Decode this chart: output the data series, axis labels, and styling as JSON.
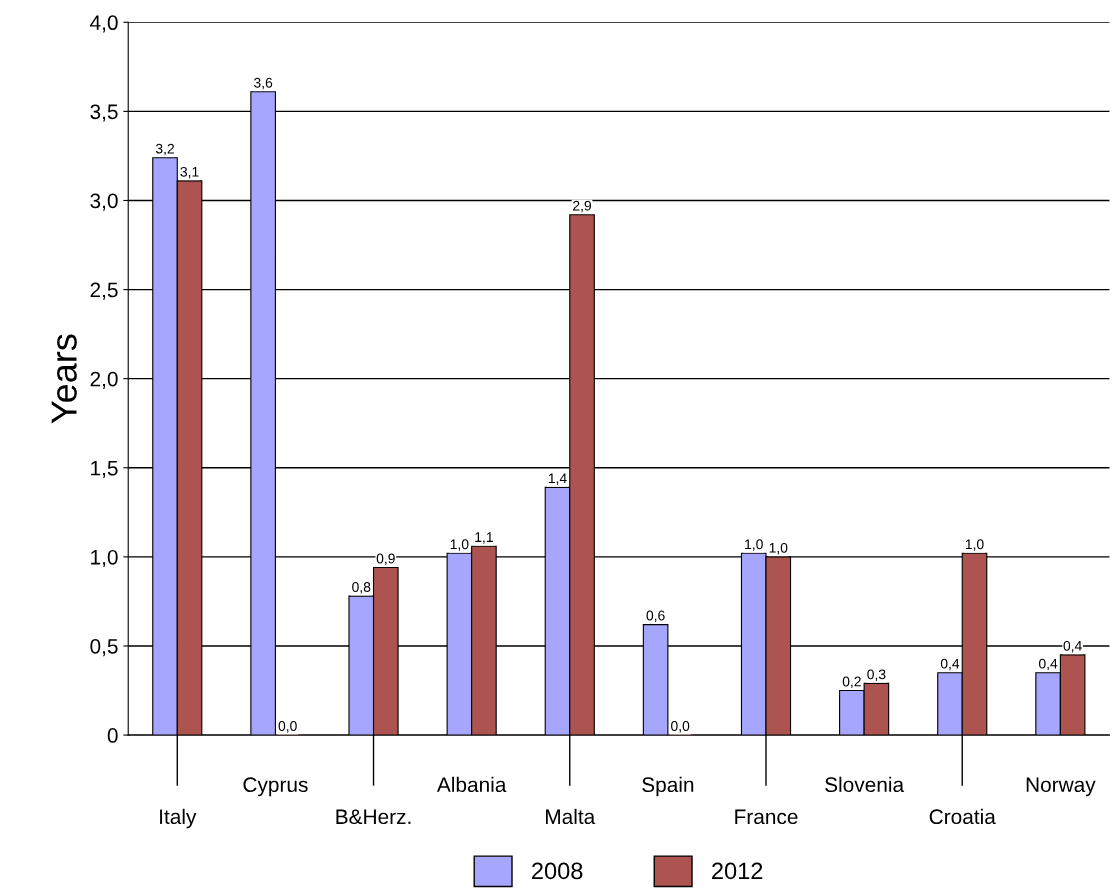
{
  "chart_data": {
    "type": "bar",
    "ylabel": "Years",
    "categories": [
      "Italy",
      "Cyprus",
      "B&Herz.",
      "Albania",
      "Malta",
      "Spain",
      "France",
      "Slovenia",
      "Croatia",
      "Norway"
    ],
    "series": [
      {
        "name": "2008",
        "color": "#a6a6ff",
        "values": [
          3.24,
          3.61,
          0.78,
          1.02,
          1.39,
          0.62,
          1.02,
          0.25,
          0.35,
          0.35
        ],
        "value_labels": [
          "3,2",
          "3,6",
          "0,8",
          "1,0",
          "1,4",
          "0,6",
          "1,0",
          "0,2",
          "0,4",
          "0,4"
        ]
      },
      {
        "name": "2012",
        "color": "#ad5450",
        "values": [
          3.11,
          0,
          0.94,
          1.06,
          2.92,
          0,
          1.0,
          0.29,
          1.02,
          0.45
        ],
        "value_labels": [
          "3,1",
          "0,0",
          "0,9",
          "1,1",
          "2,9",
          "0,0",
          "1,0",
          "0,3",
          "1,0",
          "0,4"
        ]
      }
    ],
    "ylim": [
      0,
      4
    ],
    "yticks": [
      0,
      {
        "value": 0.5,
        "label": "0,5"
      },
      {
        "value": 1,
        "label": "1,0"
      },
      {
        "value": 1.5,
        "label": "1,5"
      },
      {
        "value": 2,
        "label": "2,0"
      },
      {
        "value": 2.5,
        "label": "2,5"
      },
      {
        "value": 3,
        "label": "3,0"
      },
      {
        "value": 3.5,
        "label": "3,5"
      },
      {
        "value": 4,
        "label": "4,0"
      }
    ],
    "grid": "y",
    "legend": "bottom"
  }
}
